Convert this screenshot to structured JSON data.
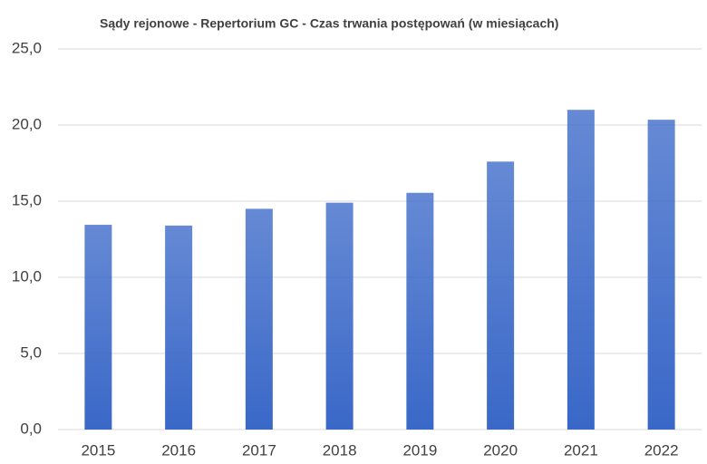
{
  "chart_data": {
    "type": "bar",
    "title": "Sądy rejonowe - Repertorium GC - Czas trwania postępowań (w miesiącach)",
    "categories": [
      "2015",
      "2016",
      "2017",
      "2018",
      "2019",
      "2020",
      "2021",
      "2022"
    ],
    "values": [
      13.45,
      13.4,
      14.5,
      14.9,
      15.55,
      17.6,
      21.0,
      20.35
    ],
    "color": "#3a68c8",
    "ylim": [
      0,
      25
    ],
    "yticks": [
      {
        "value": 0,
        "label": "0,0"
      },
      {
        "value": 5,
        "label": "5,0"
      },
      {
        "value": 10,
        "label": "10,0"
      },
      {
        "value": 15,
        "label": "15,0"
      },
      {
        "value": 20,
        "label": "20,0"
      },
      {
        "value": 25,
        "label": "25,0"
      }
    ],
    "grid": true
  }
}
